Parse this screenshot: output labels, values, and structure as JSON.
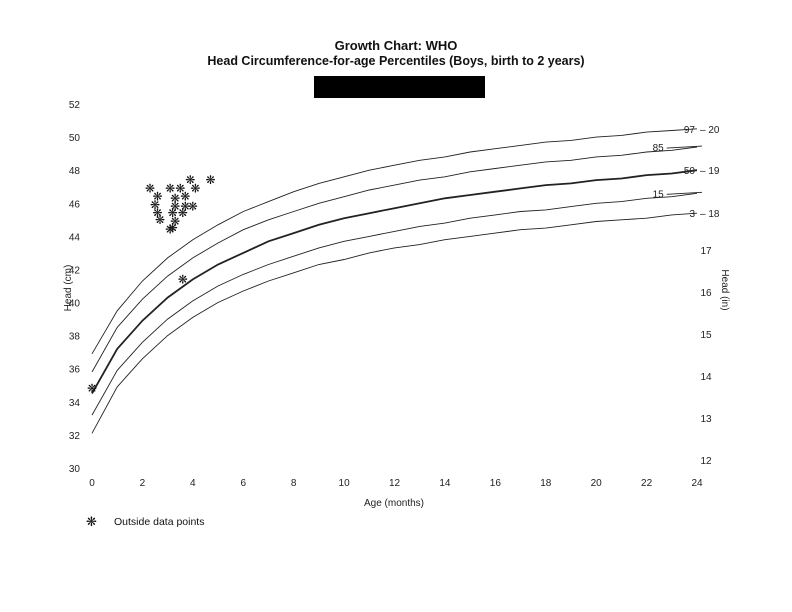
{
  "title": "Growth Chart: WHO",
  "subtitle": "Head Circumference-for-age Percentiles (Boys, birth to 2 years)",
  "legend": {
    "symbol": "❋",
    "label": "Outside data points"
  },
  "chart_data": {
    "type": "line",
    "title": "Growth Chart: WHO — Head Circumference-for-age Percentiles (Boys, birth to 2 years)",
    "xlabel": "Age (months)",
    "ylabel": "Head (cm)",
    "ylabel_right": "Head (in)",
    "xlim": [
      0,
      24
    ],
    "ylim": [
      30,
      52
    ],
    "x_ticks": [
      0,
      2,
      4,
      6,
      8,
      10,
      12,
      14,
      16,
      18,
      20,
      22,
      24
    ],
    "y_ticks": [
      30,
      32,
      34,
      36,
      38,
      40,
      42,
      44,
      46,
      48,
      50,
      52
    ],
    "y_ticks_right_in": [
      12,
      13,
      14,
      15,
      16,
      17,
      18,
      19,
      20
    ],
    "grid": false,
    "x": [
      0,
      1,
      2,
      3,
      4,
      5,
      6,
      7,
      8,
      9,
      10,
      11,
      12,
      13,
      14,
      15,
      16,
      17,
      18,
      19,
      20,
      21,
      22,
      23,
      24
    ],
    "series": [
      {
        "name": "97",
        "label_pos": "right",
        "values": [
          36.9,
          39.5,
          41.3,
          42.7,
          43.8,
          44.7,
          45.5,
          46.1,
          46.7,
          47.2,
          47.6,
          48.0,
          48.3,
          48.6,
          48.8,
          49.1,
          49.3,
          49.5,
          49.7,
          49.8,
          50.0,
          50.1,
          50.3,
          50.4,
          50.5
        ]
      },
      {
        "name": "85",
        "label_pos": "inline",
        "values": [
          35.8,
          38.5,
          40.2,
          41.6,
          42.7,
          43.6,
          44.4,
          45.0,
          45.5,
          46.0,
          46.4,
          46.8,
          47.1,
          47.4,
          47.6,
          47.9,
          48.1,
          48.3,
          48.5,
          48.6,
          48.8,
          48.9,
          49.1,
          49.2,
          49.4
        ]
      },
      {
        "name": "50",
        "label_pos": "right",
        "bold": true,
        "values": [
          34.5,
          37.2,
          38.9,
          40.3,
          41.4,
          42.3,
          43.0,
          43.7,
          44.2,
          44.7,
          45.1,
          45.4,
          45.7,
          46.0,
          46.3,
          46.5,
          46.7,
          46.9,
          47.1,
          47.2,
          47.4,
          47.5,
          47.7,
          47.8,
          48.0
        ]
      },
      {
        "name": "15",
        "label_pos": "inline",
        "values": [
          33.2,
          35.9,
          37.6,
          39.0,
          40.1,
          41.0,
          41.7,
          42.3,
          42.8,
          43.3,
          43.7,
          44.0,
          44.3,
          44.6,
          44.8,
          45.1,
          45.3,
          45.5,
          45.6,
          45.8,
          46.0,
          46.1,
          46.3,
          46.4,
          46.6
        ]
      },
      {
        "name": "3",
        "label_pos": "right",
        "values": [
          32.1,
          34.9,
          36.6,
          38.0,
          39.1,
          40.0,
          40.7,
          41.3,
          41.8,
          42.3,
          42.6,
          43.0,
          43.3,
          43.5,
          43.8,
          44.0,
          44.2,
          44.4,
          44.5,
          44.7,
          44.9,
          45.0,
          45.1,
          45.3,
          45.4
        ]
      }
    ],
    "scatter": {
      "name": "Outside data points",
      "points": [
        [
          0.0,
          34.8
        ],
        [
          2.3,
          46.9
        ],
        [
          2.6,
          46.4
        ],
        [
          2.5,
          45.9
        ],
        [
          2.6,
          45.4
        ],
        [
          2.7,
          45.0
        ],
        [
          3.1,
          46.9
        ],
        [
          3.5,
          46.9
        ],
        [
          3.9,
          47.4
        ],
        [
          4.1,
          46.9
        ],
        [
          4.7,
          47.4
        ],
        [
          3.3,
          46.3
        ],
        [
          3.7,
          46.4
        ],
        [
          3.3,
          45.8
        ],
        [
          3.7,
          45.8
        ],
        [
          4.0,
          45.8
        ],
        [
          3.2,
          45.4
        ],
        [
          3.6,
          45.4
        ],
        [
          3.3,
          44.9
        ],
        [
          3.2,
          44.5
        ],
        [
          3.1,
          44.4
        ],
        [
          3.6,
          41.4
        ]
      ]
    },
    "legend_position": "bottom-left"
  }
}
